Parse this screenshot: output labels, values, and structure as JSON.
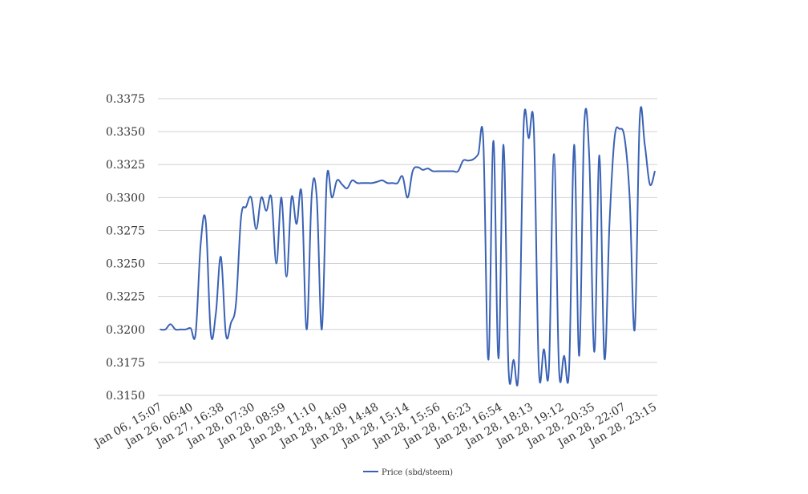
{
  "chart_data": {
    "type": "line",
    "title": "",
    "xlabel": "",
    "ylabel": "",
    "ylim": [
      0.315,
      0.3375
    ],
    "yticks": [
      "0.3150",
      "0.3175",
      "0.3200",
      "0.3225",
      "0.3250",
      "0.3275",
      "0.3300",
      "0.3325",
      "0.3350",
      "0.3375"
    ],
    "xtick_labels": [
      "Jan 06, 15:07",
      "Jan 26, 06:40",
      "Jan 27, 16:38",
      "Jan 28, 07:30",
      "Jan 28, 08:59",
      "Jan 28, 11:10",
      "Jan 28, 14:09",
      "Jan 28, 14:48",
      "Jan 28, 15:14",
      "Jan 28, 15:56",
      "Jan 28, 16:23",
      "Jan 28, 16:54",
      "Jan 28, 18:13",
      "Jan 28, 19:12",
      "Jan 28, 20:35",
      "Jan 28, 22:07",
      "Jan 28, 23:15"
    ],
    "grid": true,
    "legend_position": "bottom",
    "series": [
      {
        "name": "Price (sbd/steem)",
        "color": "#3a62b4",
        "values": [
          0.32,
          0.32,
          0.3204,
          0.32,
          0.32,
          0.32,
          0.3201,
          0.3197,
          0.3265,
          0.3282,
          0.3197,
          0.3212,
          0.3255,
          0.3196,
          0.3205,
          0.322,
          0.3285,
          0.3293,
          0.33,
          0.3276,
          0.33,
          0.329,
          0.33,
          0.325,
          0.33,
          0.324,
          0.33,
          0.328,
          0.3303,
          0.32,
          0.3302,
          0.33,
          0.32,
          0.3315,
          0.33,
          0.3313,
          0.331,
          0.3307,
          0.3313,
          0.3311,
          0.3311,
          0.3311,
          0.3311,
          0.3312,
          0.3313,
          0.3311,
          0.3311,
          0.3311,
          0.3316,
          0.33,
          0.332,
          0.3323,
          0.3321,
          0.3322,
          0.332,
          0.332,
          0.332,
          0.332,
          0.332,
          0.332,
          0.3328,
          0.3328,
          0.3329,
          0.3333,
          0.3343,
          0.3177,
          0.3343,
          0.3178,
          0.334,
          0.317,
          0.3177,
          0.317,
          0.3355,
          0.3345,
          0.3353,
          0.317,
          0.3185,
          0.317,
          0.3333,
          0.317,
          0.318,
          0.317,
          0.334,
          0.318,
          0.3355,
          0.333,
          0.3183,
          0.3332,
          0.3178,
          0.328,
          0.3345,
          0.3352,
          0.3345,
          0.33,
          0.32,
          0.336,
          0.334,
          0.331,
          0.332
        ]
      }
    ]
  }
}
